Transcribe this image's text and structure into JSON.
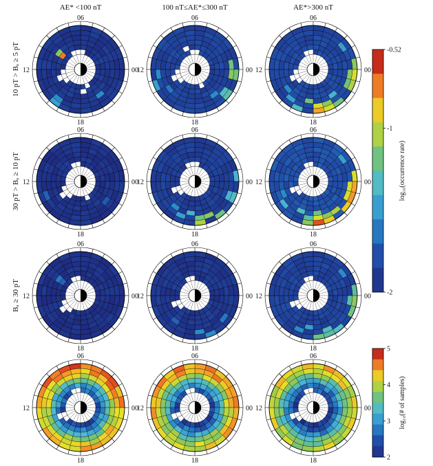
{
  "figure": {
    "column_titles": [
      "AE* <100 nT",
      "100 nT≤AE*≤300 nT",
      "AE*>300 nT"
    ],
    "row_labels": [
      "10 pT > Bₐ ≥ 5 pT",
      "30 pT > Bₐ ≥ 10 pT",
      "Bₐ ≥ 30 pT",
      ""
    ],
    "mlt_labels": {
      "top": "06",
      "left": "12",
      "right": "00",
      "bottom": "18"
    }
  },
  "colorbars": [
    {
      "title": "log₁₀(occurrence rate)",
      "ticks": [
        "-0.52",
        "-1",
        "-2"
      ],
      "tick_values": [
        -0.52,
        -1,
        -2
      ],
      "range": [
        -2,
        -0.52
      ]
    },
    {
      "title": "log₁₀(# of samples)",
      "ticks": [
        "5",
        "4",
        "3",
        "2"
      ],
      "tick_values": [
        5,
        4,
        3,
        2
      ],
      "range": [
        2,
        5
      ]
    }
  ],
  "colors": {
    "background": "#ffffff",
    "empty_sector": "#ffffff",
    "grid": "#000000",
    "map_low": "#1f2f8f",
    "map_mid": "#55b8b0",
    "map_high": "#9c1010"
  },
  "chart_data": [
    {
      "type": "heatmap",
      "projection": "polar",
      "panel": "row1-col1",
      "row": 0,
      "col": 0,
      "title": "AE* <100 nT",
      "value": "log10(occurrence rate)",
      "radial_bins": 6,
      "mlt_bins": 24,
      "range": [
        -2,
        -0.52
      ],
      "base": 0.05,
      "hotspots": [
        [
          5,
          14,
          0.35
        ],
        [
          4,
          14,
          0.3
        ],
        [
          3,
          9,
          0.3
        ],
        [
          1,
          20,
          0.85
        ],
        [
          2,
          20,
          0.6
        ]
      ],
      "empties": [
        [
          0,
          15
        ],
        [
          0,
          16
        ],
        [
          0,
          17
        ],
        [
          1,
          16
        ],
        [
          0,
          10
        ],
        [
          1,
          11
        ],
        [
          0,
          22
        ],
        [
          0,
          23
        ],
        [
          0,
          0
        ]
      ]
    },
    {
      "type": "heatmap",
      "projection": "polar",
      "panel": "row1-col2",
      "row": 0,
      "col": 1,
      "title": "100 nT≤AE*≤300 nT",
      "value": "log10(occurrence rate)",
      "radial_bins": 6,
      "mlt_bins": 24,
      "range": [
        -2,
        -0.52
      ],
      "base": 0.1,
      "hotspots": [
        [
          5,
          6,
          0.55
        ],
        [
          4,
          5,
          0.55
        ],
        [
          4,
          6,
          0.6
        ],
        [
          5,
          8,
          0.5
        ],
        [
          4,
          8,
          0.45
        ],
        [
          3,
          9,
          0.3
        ],
        [
          5,
          16,
          0.35
        ],
        [
          4,
          17,
          0.3
        ],
        [
          3,
          15,
          0.25
        ]
      ],
      "empties": [
        [
          0,
          15
        ],
        [
          0,
          16
        ],
        [
          1,
          16
        ],
        [
          0,
          17
        ],
        [
          0,
          10
        ],
        [
          1,
          22
        ],
        [
          0,
          23
        ],
        [
          0,
          0
        ]
      ]
    },
    {
      "type": "heatmap",
      "projection": "polar",
      "panel": "row1-col3",
      "row": 0,
      "col": 2,
      "title": "AE*>300 nT",
      "value": "log10(occurrence rate)",
      "radial_bins": 6,
      "mlt_bins": 24,
      "range": [
        -2,
        -0.52
      ],
      "base": 0.12,
      "hotspots": [
        [
          5,
          5,
          0.6
        ],
        [
          5,
          6,
          0.7
        ],
        [
          5,
          7,
          0.65
        ],
        [
          4,
          6,
          0.6
        ],
        [
          4,
          7,
          0.55
        ],
        [
          5,
          9,
          0.55
        ],
        [
          5,
          10,
          0.7
        ],
        [
          4,
          10,
          0.6
        ],
        [
          5,
          11,
          0.8
        ],
        [
          4,
          11,
          0.7
        ],
        [
          3,
          12,
          0.55
        ],
        [
          5,
          13,
          0.45
        ],
        [
          3,
          9,
          0.4
        ],
        [
          4,
          14,
          0.35
        ],
        [
          3,
          15,
          0.3
        ],
        [
          4,
          3,
          0.35
        ]
      ],
      "empties": [
        [
          0,
          15
        ],
        [
          0,
          16
        ],
        [
          1,
          16
        ],
        [
          0,
          17
        ],
        [
          0,
          22
        ],
        [
          0,
          23
        ]
      ]
    },
    {
      "type": "heatmap",
      "projection": "polar",
      "panel": "row2-col1",
      "row": 1,
      "col": 0,
      "title": "AE* <100 nT",
      "value": "log10(occurrence rate)",
      "radial_bins": 6,
      "mlt_bins": 24,
      "range": [
        -2,
        -0.52
      ],
      "base": 0.03,
      "hotspots": [
        [
          4,
          16,
          0.2
        ],
        [
          3,
          8,
          0.18
        ]
      ],
      "empties": [
        [
          0,
          14
        ],
        [
          0,
          15
        ],
        [
          0,
          16
        ],
        [
          1,
          15
        ],
        [
          0,
          10
        ],
        [
          0,
          22
        ],
        [
          0,
          23
        ]
      ]
    },
    {
      "type": "heatmap",
      "projection": "polar",
      "panel": "row2-col2",
      "row": 1,
      "col": 1,
      "title": "100 nT≤AE*≤300 nT",
      "value": "log10(occurrence rate)",
      "radial_bins": 6,
      "mlt_bins": 24,
      "range": [
        -2,
        -0.52
      ],
      "base": 0.08,
      "hotspots": [
        [
          5,
          5,
          0.4
        ],
        [
          5,
          7,
          0.45
        ],
        [
          4,
          7,
          0.4
        ],
        [
          5,
          9,
          0.55
        ],
        [
          4,
          10,
          0.6
        ],
        [
          5,
          11,
          0.65
        ],
        [
          4,
          11,
          0.55
        ],
        [
          3,
          12,
          0.4
        ],
        [
          4,
          13,
          0.35
        ],
        [
          3,
          14,
          0.3
        ]
      ],
      "empties": [
        [
          0,
          15
        ],
        [
          0,
          16
        ],
        [
          1,
          16
        ],
        [
          0,
          22
        ],
        [
          0,
          23
        ],
        [
          0,
          0
        ]
      ]
    },
    {
      "type": "heatmap",
      "projection": "polar",
      "panel": "row2-col3",
      "row": 1,
      "col": 2,
      "title": "AE*>300 nT",
      "value": "log10(occurrence rate)",
      "radial_bins": 6,
      "mlt_bins": 24,
      "range": [
        -2,
        -0.52
      ],
      "base": 0.15,
      "hotspots": [
        [
          5,
          5,
          0.7
        ],
        [
          5,
          6,
          0.8
        ],
        [
          5,
          7,
          0.82
        ],
        [
          4,
          6,
          0.7
        ],
        [
          4,
          7,
          0.7
        ],
        [
          5,
          8,
          0.75
        ],
        [
          4,
          9,
          0.65
        ],
        [
          5,
          10,
          0.75
        ],
        [
          4,
          10,
          0.6
        ],
        [
          5,
          11,
          0.9
        ],
        [
          4,
          11,
          0.7
        ],
        [
          3,
          11,
          0.55
        ],
        [
          5,
          12,
          0.6
        ],
        [
          4,
          12,
          0.5
        ],
        [
          3,
          13,
          0.45
        ],
        [
          4,
          15,
          0.4
        ],
        [
          3,
          16,
          0.3
        ],
        [
          4,
          3,
          0.35
        ]
      ],
      "empties": [
        [
          0,
          15
        ],
        [
          0,
          16
        ],
        [
          1,
          16
        ],
        [
          0,
          22
        ],
        [
          0,
          23
        ]
      ]
    },
    {
      "type": "heatmap",
      "projection": "polar",
      "panel": "row3-col1",
      "row": 2,
      "col": 0,
      "title": "AE* <100 nT",
      "value": "log10(occurrence rate)",
      "radial_bins": 6,
      "mlt_bins": 24,
      "range": [
        -2,
        -0.52
      ],
      "base": 0.02,
      "hotspots": [
        [
          2,
          20,
          0.25
        ],
        [
          1,
          20,
          0.2
        ]
      ],
      "empties": [
        [
          0,
          14
        ],
        [
          0,
          15
        ],
        [
          0,
          16
        ],
        [
          1,
          15
        ],
        [
          0,
          22
        ],
        [
          0,
          23
        ]
      ]
    },
    {
      "type": "heatmap",
      "projection": "polar",
      "panel": "row3-col2",
      "row": 2,
      "col": 1,
      "title": "100 nT≤AE*≤300 nT",
      "value": "log10(occurrence rate)",
      "radial_bins": 6,
      "mlt_bins": 24,
      "range": [
        -2,
        -0.52
      ],
      "base": 0.05,
      "hotspots": [
        [
          4,
          8,
          0.25
        ],
        [
          5,
          10,
          0.3
        ],
        [
          4,
          11,
          0.3
        ],
        [
          3,
          14,
          0.2
        ]
      ],
      "empties": [
        [
          0,
          15
        ],
        [
          0,
          16
        ],
        [
          1,
          16
        ],
        [
          0,
          22
        ],
        [
          0,
          23
        ]
      ]
    },
    {
      "type": "heatmap",
      "projection": "polar",
      "panel": "row3-col3",
      "row": 2,
      "col": 2,
      "title": "AE*>300 nT",
      "value": "log10(occurrence rate)",
      "radial_bins": 6,
      "mlt_bins": 24,
      "range": [
        -2,
        -0.52
      ],
      "base": 0.1,
      "hotspots": [
        [
          5,
          5,
          0.5
        ],
        [
          5,
          6,
          0.6
        ],
        [
          4,
          6,
          0.5
        ],
        [
          5,
          7,
          0.55
        ],
        [
          5,
          9,
          0.45
        ],
        [
          5,
          10,
          0.5
        ],
        [
          4,
          10,
          0.45
        ],
        [
          5,
          11,
          0.55
        ],
        [
          3,
          12,
          0.35
        ],
        [
          4,
          13,
          0.3
        ],
        [
          4,
          3,
          0.3
        ]
      ],
      "empties": [
        [
          0,
          15
        ],
        [
          0,
          16
        ],
        [
          1,
          16
        ],
        [
          0,
          22
        ],
        [
          0,
          23
        ]
      ]
    },
    {
      "type": "heatmap",
      "projection": "polar",
      "panel": "row4-col1",
      "row": 3,
      "col": 0,
      "title": "AE* <100 nT",
      "value": "log10(# of samples)",
      "radial_bins": 6,
      "mlt_bins": 24,
      "range": [
        2,
        5
      ],
      "radial_profile": [
        0.15,
        0.3,
        0.45,
        0.65,
        0.75,
        0.8
      ],
      "empties": [
        [
          0,
          15
        ],
        [
          0,
          16
        ],
        [
          1,
          16
        ],
        [
          0,
          22
        ],
        [
          0,
          23
        ]
      ]
    },
    {
      "type": "heatmap",
      "projection": "polar",
      "panel": "row4-col2",
      "row": 3,
      "col": 1,
      "title": "100 nT≤AE*≤300 nT",
      "value": "log10(# of samples)",
      "radial_bins": 6,
      "mlt_bins": 24,
      "range": [
        2,
        5
      ],
      "radial_profile": [
        0.12,
        0.28,
        0.42,
        0.6,
        0.72,
        0.78
      ],
      "empties": [
        [
          0,
          15
        ],
        [
          0,
          16
        ],
        [
          1,
          16
        ],
        [
          0,
          22
        ],
        [
          0,
          23
        ]
      ]
    },
    {
      "type": "heatmap",
      "projection": "polar",
      "panel": "row4-col3",
      "row": 3,
      "col": 2,
      "title": "AE*>300 nT",
      "value": "log10(# of samples)",
      "radial_bins": 6,
      "mlt_bins": 24,
      "range": [
        2,
        5
      ],
      "radial_profile": [
        0.1,
        0.22,
        0.36,
        0.52,
        0.64,
        0.7
      ],
      "empties": [
        [
          0,
          15
        ],
        [
          0,
          16
        ],
        [
          1,
          16
        ],
        [
          0,
          22
        ],
        [
          0,
          23
        ]
      ]
    }
  ]
}
